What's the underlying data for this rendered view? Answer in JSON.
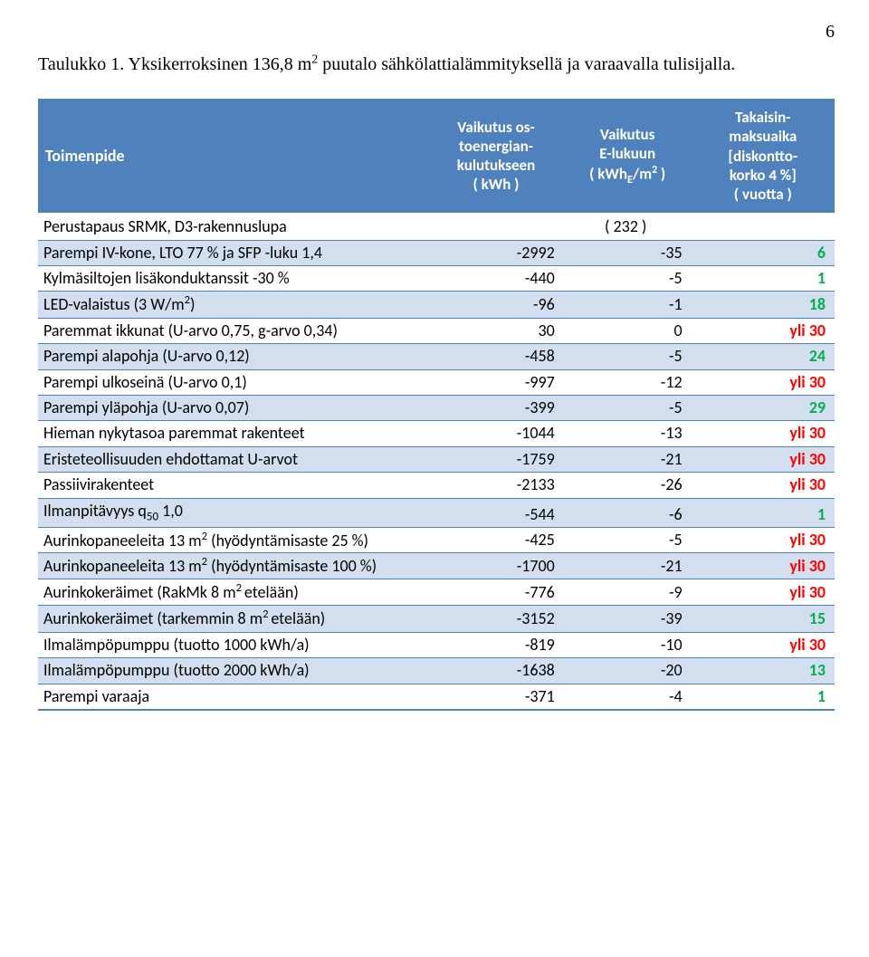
{
  "page_number": "6",
  "caption_prefix": "Taulukko 1. Yksikerroksinen 136,8 m",
  "caption_suffix": " puutalo sähkölattialämmityksellä ja varaavalla tulisijalla.",
  "headers": {
    "action": "Toimenpide",
    "energy_l1": "Vaikutus os-",
    "energy_l2": "toenergian-",
    "energy_l3": "kulutukseen",
    "energy_l4": "( kWh )",
    "evalue_l1": "Vaikutus",
    "evalue_l2": "E-lukuun",
    "evalue_l3a": "( kWh",
    "evalue_l3b": "/m",
    "evalue_l3c": " )",
    "evalue_sub": "E",
    "payback_l1": "Takaisin-",
    "payback_l2": "maksuaika",
    "payback_l3": "[diskontto-",
    "payback_l4": "korko 4 %]",
    "payback_l5": "( vuotta )"
  },
  "colors": {
    "green": "#00b050",
    "red": "#ff0000",
    "black": "#000000"
  },
  "rows": [
    {
      "label_pre": "Perustapaus SRMK, D3-rakennuslupa",
      "sup": "",
      "label_post": "",
      "c1": "",
      "c2": "( 232 )",
      "c3": "",
      "c3_color": "#000000",
      "c2_align": "center"
    },
    {
      "label_pre": "Parempi IV-kone, LTO 77 % ja SFP -luku 1,4",
      "sup": "",
      "label_post": "",
      "c1": "-2992",
      "c2": "-35",
      "c3": "6",
      "c3_color": "#00b050"
    },
    {
      "label_pre": "Kylmäsiltojen lisäkonduktanssit -30 %",
      "sup": "",
      "label_post": "",
      "c1": "-440",
      "c2": "-5",
      "c3": "1",
      "c3_color": "#00b050"
    },
    {
      "label_pre": "LED-valaistus (3 W/m",
      "sup": "2",
      "label_post": ")",
      "c1": "-96",
      "c2": "-1",
      "c3": "18",
      "c3_color": "#00b050"
    },
    {
      "label_pre": "Paremmat ikkunat (U-arvo 0,75, g-arvo 0,34)",
      "sup": "",
      "label_post": "",
      "c1": "30",
      "c2": "0",
      "c3": "yli 30",
      "c3_color": "#ff0000"
    },
    {
      "label_pre": "Parempi alapohja (U-arvo 0,12)",
      "sup": "",
      "label_post": "",
      "c1": "-458",
      "c2": "-5",
      "c3": "24",
      "c3_color": "#00b050"
    },
    {
      "label_pre": "Parempi ulkoseinä (U-arvo 0,1)",
      "sup": "",
      "label_post": "",
      "c1": "-997",
      "c2": "-12",
      "c3": "yli 30",
      "c3_color": "#ff0000"
    },
    {
      "label_pre": "Parempi yläpohja (U-arvo 0,07)",
      "sup": "",
      "label_post": "",
      "c1": "-399",
      "c2": "-5",
      "c3": "29",
      "c3_color": "#00b050"
    },
    {
      "label_pre": "Hieman nykytasoa paremmat rakenteet",
      "sup": "",
      "label_post": "",
      "c1": "-1044",
      "c2": "-13",
      "c3": "yli 30",
      "c3_color": "#ff0000"
    },
    {
      "label_pre": "Eristeteollisuuden ehdottamat U-arvot",
      "sup": "",
      "label_post": "",
      "c1": "-1759",
      "c2": "-21",
      "c3": "yli 30",
      "c3_color": "#ff0000"
    },
    {
      "label_pre": "Passiivirakenteet",
      "sup": "",
      "label_post": "",
      "c1": "-2133",
      "c2": "-26",
      "c3": "yli 30",
      "c3_color": "#ff0000"
    },
    {
      "label_pre": "Ilmanpitävyys q",
      "sub": "50",
      "label_post": " 1,0",
      "c1": "-544",
      "c2": "-6",
      "c3": "1",
      "c3_color": "#00b050",
      "has_sub": true
    },
    {
      "label_pre": "Aurinkopaneeleita 13 m",
      "sup": "2",
      "label_post": " (hyödyntämisaste 25 %)",
      "c1": "-425",
      "c2": "-5",
      "c3": "yli 30",
      "c3_color": "#ff0000",
      "multiline": true
    },
    {
      "label_pre": "Aurinkopaneeleita 13 m",
      "sup": "2",
      "label_post": " (hyödyntämisaste 100 %)",
      "c1": "-1700",
      "c2": "-21",
      "c3": "yli 30",
      "c3_color": "#ff0000",
      "multiline": true
    },
    {
      "label_pre": "Aurinkokeräimet (RakMk 8 m",
      "sup": "2 ",
      "label_post": "etelään)",
      "c1": "-776",
      "c2": "-9",
      "c3": "yli 30",
      "c3_color": "#ff0000"
    },
    {
      "label_pre": "Aurinkokeräimet (tarkemmin 8 m",
      "sup": "2 ",
      "label_post": "etelään)",
      "c1": "-3152",
      "c2": "-39",
      "c3": "15",
      "c3_color": "#00b050"
    },
    {
      "label_pre": "Ilmalämpöpumppu (tuotto 1000 kWh/a)",
      "sup": "",
      "label_post": "",
      "c1": "-819",
      "c2": "-10",
      "c3": "yli 30",
      "c3_color": "#ff0000"
    },
    {
      "label_pre": "Ilmalämpöpumppu (tuotto 2000 kWh/a)",
      "sup": "",
      "label_post": "",
      "c1": "-1638",
      "c2": "-20",
      "c3": "13",
      "c3_color": "#00b050"
    },
    {
      "label_pre": "Parempi varaaja",
      "sup": "",
      "label_post": "",
      "c1": "-371",
      "c2": "-4",
      "c3": "1",
      "c3_color": "#00b050"
    }
  ]
}
